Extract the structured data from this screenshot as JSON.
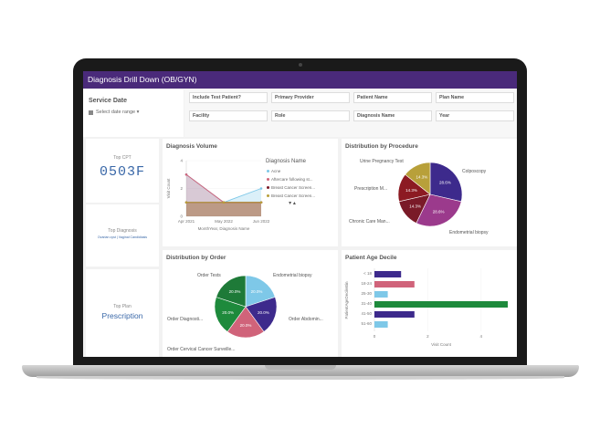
{
  "window": {
    "title": "Diagnosis Drill Down (OB/GYN)"
  },
  "service": {
    "title": "Service Date",
    "date_placeholder": "Select date range ▾"
  },
  "filters": [
    {
      "label": "Include Test Patient?"
    },
    {
      "label": "Primary Provider"
    },
    {
      "label": "Patient Name"
    },
    {
      "label": "Plan Name"
    },
    {
      "label": "Facility"
    },
    {
      "label": "Role"
    },
    {
      "label": "Diagnosis Name"
    },
    {
      "label": "Year"
    }
  ],
  "kpis": {
    "top_cpt": {
      "label": "Top CPT",
      "value": "0503F"
    },
    "top_diagnosis": {
      "label": "Top Diagnosis",
      "sub": "Ovarian cyst | Vaginal Candidiasis"
    },
    "top_plan": {
      "label": "Top Plan",
      "value": "Prescription"
    }
  },
  "colors": {
    "purple": "#3d2a8c",
    "pink": "#d0637a",
    "light_blue": "#7ec8e8",
    "green": "#1e8a3c",
    "olive": "#b8a03a",
    "maroon": "#7a1a28",
    "header": "#4a2a7a"
  },
  "chart_data": [
    {
      "type": "area",
      "title": "Diagnosis Volume",
      "xlabel": "MonthYear, Diagnosis Name",
      "ylabel": "Visit Count",
      "categories": [
        "Apr 2021",
        "May 2022",
        "Jun 2022"
      ],
      "ylim": [
        0,
        4
      ],
      "yticks": [
        0,
        2,
        4
      ],
      "legend_title": "Diagnosis Name",
      "series": [
        {
          "name": "Acne",
          "color": "#7ec8e8",
          "values": [
            3,
            1,
            2
          ]
        },
        {
          "name": "Aftercare following st...",
          "color": "#d0637a",
          "values": [
            3,
            1,
            1
          ]
        },
        {
          "name": "Breast Cancer Screen...",
          "color": "#7a1a28",
          "values": [
            1,
            1,
            1
          ]
        },
        {
          "name": "Breast Cancer Screen...",
          "color": "#b8a03a",
          "values": [
            1,
            1,
            1
          ]
        }
      ]
    },
    {
      "type": "pie",
      "title": "Distribution by Procedure",
      "slices": [
        {
          "label": "Colposcopy",
          "value": 28.6,
          "display": "28.6%",
          "color": "#3d2a8c"
        },
        {
          "label": "Endometrial biopsy",
          "value": 28.6,
          "display": "28.6%",
          "color": "#9b3a8c"
        },
        {
          "label": "Chronic Care Man...",
          "value": 14.3,
          "display": "14.3%",
          "color": "#7a1a28"
        },
        {
          "label": "Prescription M...",
          "value": 14.3,
          "display": "14.3%",
          "color": "#8c1a22"
        },
        {
          "label": "Urine Pregnancy Test",
          "value": 14.3,
          "display": "14.3%",
          "color": "#b8a03a"
        }
      ]
    },
    {
      "type": "pie",
      "title": "Distribution by Order",
      "slices": [
        {
          "label": "Endometrial biopsy",
          "value": 20.0,
          "display": "20.0%",
          "color": "#7ec8e8"
        },
        {
          "label": "Order Abdomin...",
          "value": 20.0,
          "display": "20.0%",
          "color": "#3d2a8c"
        },
        {
          "label": "Order Cervical Cancer Surveille...",
          "value": 20.0,
          "display": "20.0%",
          "color": "#d0637a"
        },
        {
          "label": "Order Diagnosti...",
          "value": 20.0,
          "display": "20.0%",
          "color": "#1e8a3c"
        },
        {
          "label": "Order Tests",
          "value": 20.0,
          "display": "20.0%",
          "color": "#1e7a38"
        }
      ]
    },
    {
      "type": "bar",
      "orientation": "horizontal",
      "title": "Patient Age Decile",
      "ylabel": "PatientAgeDecileBin",
      "xlabel": "Visit Count",
      "categories": [
        "< 18",
        "18-24",
        "25-30",
        "31-40",
        "41-50",
        "51-60"
      ],
      "values": [
        1,
        1.5,
        0.5,
        5,
        1.5,
        0.5
      ],
      "bar_colors": [
        "#3d2a8c",
        "#d0637a",
        "#7ec8e8",
        "#1e8a3c",
        "#3d2a8c",
        "#7ec8e8"
      ],
      "xlim": [
        0,
        5
      ],
      "xticks": [
        0,
        2,
        4
      ]
    }
  ]
}
